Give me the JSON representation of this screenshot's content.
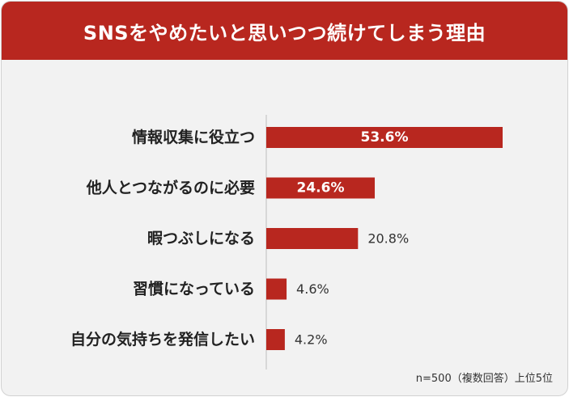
{
  "header": {
    "title": "SNSをやめたいと思いつつ続けてしまう理由"
  },
  "colors": {
    "accent": "#b8271f",
    "background": "#f2f2f2",
    "header_text": "#ffffff"
  },
  "chart_data": {
    "type": "bar",
    "orientation": "horizontal",
    "title": "SNSをやめたいと思いつつ続けてしまう理由",
    "categories": [
      "情報収集に役立つ",
      "他人とつながるのに必要",
      "暇つぶしになる",
      "習慣になっている",
      "自分の気持ちを発信したい"
    ],
    "values": [
      53.6,
      24.6,
      20.8,
      4.6,
      4.2
    ],
    "value_labels": [
      "53.6%",
      "24.6%",
      "20.8%",
      "4.6%",
      "4.2%"
    ],
    "unit": "%",
    "xlim": [
      0,
      100
    ],
    "grid": false,
    "legend": "none",
    "note": "n=500（複数回答）上位5位"
  }
}
